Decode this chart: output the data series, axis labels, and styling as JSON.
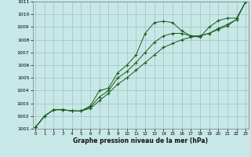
{
  "title": "Graphe pression niveau de la mer (hPa)",
  "hours": [
    0,
    1,
    2,
    3,
    4,
    5,
    6,
    7,
    8,
    9,
    10,
    11,
    12,
    13,
    14,
    15,
    16,
    17,
    18,
    19,
    20,
    21,
    22,
    23
  ],
  "ylim": [
    1001,
    1011
  ],
  "yticks": [
    1001,
    1002,
    1003,
    1004,
    1005,
    1006,
    1007,
    1008,
    1009,
    1010,
    1011
  ],
  "bg_color": "#c8e8e8",
  "grid_color": "#a0c0c0",
  "line_color": "#1a5c1a",
  "lineA": [
    1001.1,
    1002.0,
    1002.5,
    1002.5,
    1002.4,
    1002.4,
    1002.6,
    1003.2,
    1003.8,
    1004.5,
    1005.0,
    1005.6,
    1006.2,
    1006.8,
    1007.4,
    1007.7,
    1008.0,
    1008.2,
    1008.3,
    1008.5,
    1008.8,
    1009.1,
    1009.6,
    1011.0
  ],
  "lineB": [
    1001.1,
    1002.0,
    1002.5,
    1002.5,
    1002.4,
    1002.4,
    1002.7,
    1003.5,
    1004.0,
    1005.0,
    1005.5,
    1006.2,
    1007.0,
    1007.8,
    1008.3,
    1008.5,
    1008.5,
    1008.3,
    1008.3,
    1008.5,
    1008.9,
    1009.2,
    1009.6,
    1011.0
  ],
  "lineC": [
    1001.1,
    1002.0,
    1002.5,
    1002.5,
    1002.4,
    1002.4,
    1002.8,
    1004.0,
    1004.2,
    1005.4,
    1006.0,
    1006.8,
    1008.5,
    1009.35,
    1009.45,
    1009.35,
    1008.7,
    1008.3,
    1008.2,
    1009.0,
    1009.5,
    1009.7,
    1009.7,
    1011.0
  ]
}
